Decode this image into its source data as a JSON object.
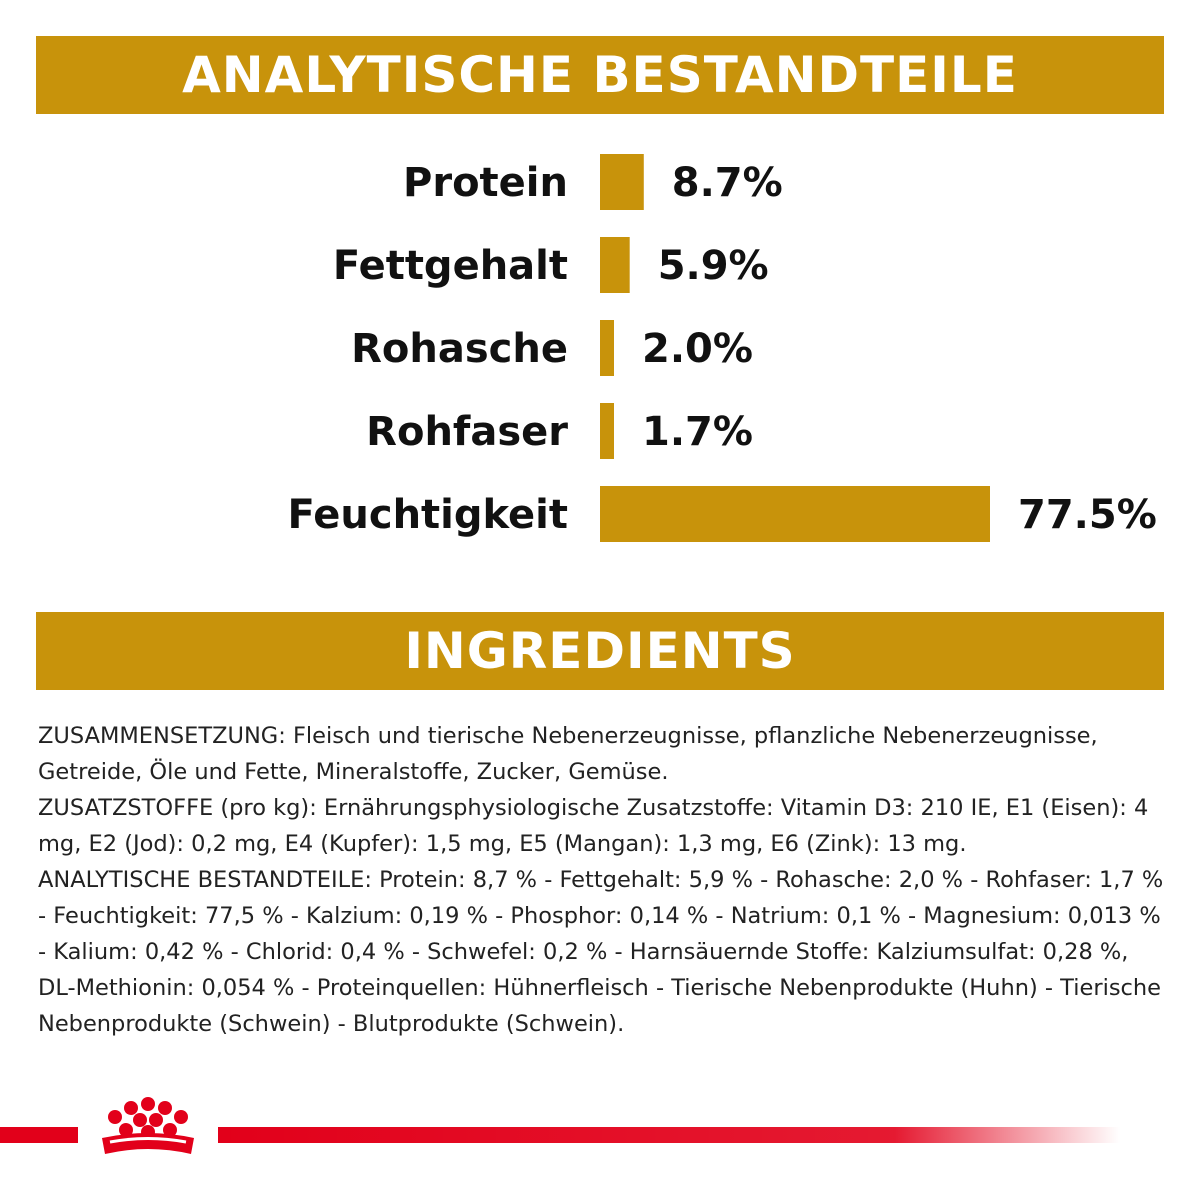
{
  "header": {
    "analytic_title": "ANALYTISCHE BESTANDTEILE",
    "ingredients_title": "INGREDIENTS"
  },
  "chart_data": {
    "type": "bar",
    "orientation": "horizontal",
    "categories": [
      "Protein",
      "Fettgehalt",
      "Rohasche",
      "Rohfaser",
      "Feuchtigkeit"
    ],
    "values": [
      8.7,
      5.9,
      2.0,
      1.7,
      77.5
    ],
    "value_labels": [
      "8.7%",
      "5.9%",
      "2.0%",
      "1.7%",
      "77.5%"
    ],
    "unit": "%",
    "bar_color": "#c8930b",
    "title": "",
    "xlabel": "",
    "ylabel": "",
    "grid": false
  },
  "ingredients": {
    "zusammensetzung": "ZUSAMMENSETZUNG: Fleisch und tierische Nebenerzeugnisse, pflanzliche Nebenerzeugnisse, Getreide, Öle und Fette, Mineralstoffe, Zucker, Gemüse.",
    "zusatzstoffe": "ZUSATZSTOFFE (pro kg): Ernährungsphysiologische Zusatzstoffe: Vitamin D3: 210 IE, E1 (Eisen): 4 mg, E2 (Jod): 0,2 mg, E4 (Kupfer): 1,5 mg, E5 (Mangan): 1,3 mg, E6 (Zink): 13 mg.",
    "analytische": "ANALYTISCHE BESTANDTEILE: Protein: 8,7 % - Fettgehalt: 5,9 % - Rohasche: 2,0 % - Rohfaser: 1,7 % - Feuchtigkeit: 77,5 % - Kalzium: 0,19 % - Phosphor: 0,14 % - Natrium: 0,1 % - Magnesium: 0,013 % - Kalium: 0,42 % - Chlorid: 0,4 % - Schwefel: 0,2 % - Harnsäuernde Stoffe: Kalziumsulfat: 0,28 %, DL-Methionin: 0,054 % - Proteinquellen: Hühnerfleisch - Tierische Nebenprodukte (Huhn) - Tierische Nebenprodukte (Schwein) - Blutprodukte (Schwein)."
  },
  "colors": {
    "accent": "#c8930b",
    "brand_red": "#e2001a"
  },
  "logo": {
    "icon": "crown-icon"
  }
}
